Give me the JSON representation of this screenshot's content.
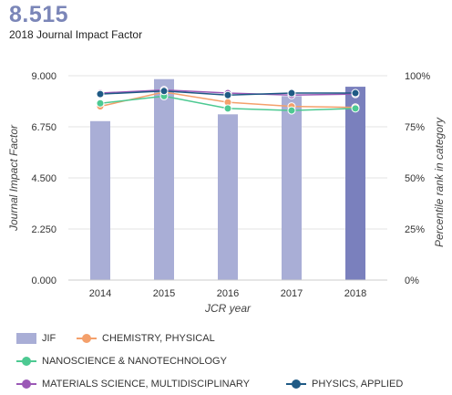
{
  "header": {
    "value": "8.515",
    "caption": "2018 Journal Impact Factor"
  },
  "chart_data": {
    "type": "bar+line",
    "categories": [
      "2014",
      "2015",
      "2016",
      "2017",
      "2018"
    ],
    "xlabel": "JCR year",
    "ylabel_left": "Journal Impact Factor",
    "ylabel_right": "Percentile rank in category",
    "ylim_left": [
      0,
      9
    ],
    "yticks_left": [
      "0.000",
      "2.250",
      "4.500",
      "6.750",
      "9.000"
    ],
    "ylim_right": [
      0,
      100
    ],
    "yticks_right": [
      "0%",
      "25%",
      "50%",
      "75%",
      "100%"
    ],
    "grid": true,
    "legend_position": "bottom",
    "bars": {
      "name": "JIF",
      "values": [
        7.0,
        8.85,
        7.3,
        8.1,
        8.515
      ],
      "color": "#a9aed6",
      "highlight_color": "#7a80bd"
    },
    "series": [
      {
        "name": "CHEMISTRY, PHYSICAL",
        "values": [
          85,
          92,
          87,
          85,
          84.5
        ],
        "color": "#f4a06b"
      },
      {
        "name": "NANOSCIENCE & NANOTECHNOLOGY",
        "values": [
          86.5,
          90,
          84,
          83,
          84
        ],
        "color": "#4dc992"
      },
      {
        "name": "MATERIALS SCIENCE, MULTIDISCIPLINARY",
        "values": [
          91.5,
          93,
          91.5,
          90.5,
          91
        ],
        "color": "#9b59b6"
      },
      {
        "name": "PHYSICS, APPLIED",
        "values": [
          91,
          92.5,
          90.5,
          91.5,
          91.5
        ],
        "color": "#1f5a85"
      }
    ]
  }
}
